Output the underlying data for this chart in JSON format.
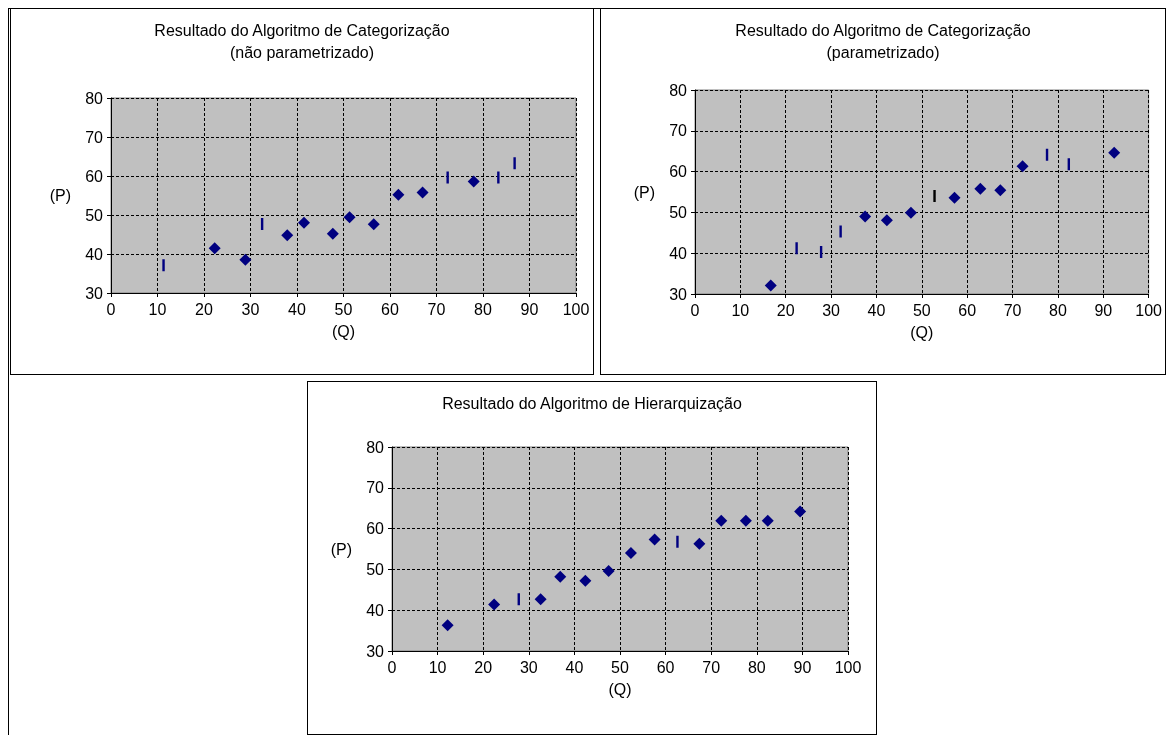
{
  "chart_data": [
    {
      "type": "scatter",
      "title": "Resultado do Algoritmo de Categorização",
      "subtitle": "(não parametrizado)",
      "xlabel": "(Q)",
      "ylabel": "(P)",
      "xlim": [
        0,
        100
      ],
      "xticks": [
        0,
        10,
        20,
        30,
        40,
        50,
        60,
        70,
        80,
        90,
        100
      ],
      "ylim": [
        30,
        80
      ],
      "yticks": [
        30,
        40,
        50,
        60,
        70,
        80
      ],
      "grid": true,
      "series": [
        {
          "color": "#000080",
          "marker": "diamond",
          "x": [
            22.3,
            28.9,
            37.9,
            41.5,
            47.7,
            51.3,
            56.5,
            61.8,
            67.0,
            78.0
          ],
          "values": [
            41.5,
            38.5,
            44.8,
            48.0,
            45.2,
            49.4,
            47.6,
            55.2,
            55.8,
            58.6
          ]
        },
        {
          "color": "#000080",
          "x": [
            11.3,
            32.5,
            72.4,
            83.3,
            86.8
          ],
          "values": [
            37.1,
            47.7,
            59.6,
            59.6,
            63.3
          ]
        }
      ]
    },
    {
      "type": "scatter",
      "title": "Resultado do Algoritmo de Categorização",
      "subtitle": "(parametrizado)",
      "xlabel": "(Q)",
      "ylabel": "(P)",
      "xlim": [
        0,
        100
      ],
      "xticks": [
        0,
        10,
        20,
        30,
        40,
        50,
        60,
        70,
        80,
        90,
        100
      ],
      "ylim": [
        30,
        80
      ],
      "yticks": [
        30,
        40,
        50,
        60,
        70,
        80
      ],
      "grid": true,
      "series": [
        {
          "color": "#000080",
          "marker": "diamond",
          "x": [
            16.7,
            37.5,
            42.3,
            47.6,
            57.2,
            62.9,
            67.3,
            72.2,
            92.4
          ],
          "values": [
            32.1,
            49.0,
            48.1,
            49.9,
            53.6,
            55.8,
            55.4,
            61.3,
            64.6
          ]
        },
        {
          "color": "#000080",
          "colors": [
            null,
            null,
            null,
            "#000000",
            null,
            null
          ],
          "x": [
            22.4,
            27.8,
            32.1,
            52.8,
            77.6,
            82.4
          ],
          "values": [
            41.2,
            40.3,
            45.3,
            54.0,
            64.1,
            61.8
          ]
        }
      ]
    },
    {
      "type": "scatter",
      "title": "Resultado do Algoritmo de Hierarquização",
      "xlabel": "(Q)",
      "ylabel": "(P)",
      "xlim": [
        0,
        100
      ],
      "xticks": [
        0,
        10,
        20,
        30,
        40,
        50,
        60,
        70,
        80,
        90,
        100
      ],
      "ylim": [
        30,
        80
      ],
      "yticks": [
        30,
        40,
        50,
        60,
        70,
        80
      ],
      "grid": true,
      "series": [
        {
          "color": "#000080",
          "marker": "diamond",
          "x": [
            12.2,
            22.4,
            32.6,
            36.9,
            42.4,
            47.5,
            52.4,
            57.6,
            67.4,
            72.2,
            77.6,
            82.4,
            89.5
          ],
          "values": [
            36.3,
            41.4,
            42.7,
            48.2,
            47.2,
            49.6,
            54.0,
            57.3,
            56.3,
            61.9,
            61.9,
            61.9,
            64.2
          ]
        },
        {
          "color": "#000080",
          "x": [
            27.8,
            62.6
          ],
          "values": [
            42.7,
            56.8
          ]
        }
      ]
    }
  ]
}
